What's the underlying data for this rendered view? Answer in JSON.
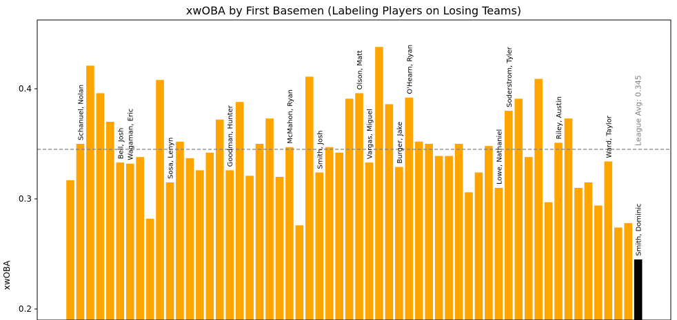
{
  "chart_data": {
    "type": "bar",
    "title": "xwOBA by First Basemen (Labeling Players on Losing Teams)",
    "xlabel": "",
    "ylabel": "xwOBA",
    "ylim": [
      0.19,
      0.4625
    ],
    "yticks": [
      0.2,
      0.3,
      0.4
    ],
    "ytick_labels": [
      "0.2",
      "0.3",
      "0.4"
    ],
    "grid": false,
    "colors": {
      "default": "#FFA500",
      "highlight": "#000000",
      "reference": "#808080"
    },
    "values": [
      0.317,
      0.35,
      0.421,
      0.396,
      0.37,
      0.333,
      0.332,
      0.338,
      0.282,
      0.408,
      0.315,
      0.352,
      0.337,
      0.326,
      0.342,
      0.372,
      0.326,
      0.388,
      0.321,
      0.35,
      0.373,
      0.32,
      0.347,
      0.276,
      0.411,
      0.324,
      0.347,
      0.342,
      0.391,
      0.396,
      0.333,
      0.438,
      0.386,
      0.329,
      0.392,
      0.352,
      0.35,
      0.339,
      0.339,
      0.35,
      0.306,
      0.324,
      0.348,
      0.31,
      0.38,
      0.391,
      0.338,
      0.409,
      0.297,
      0.351,
      0.373,
      0.31,
      0.315,
      0.294,
      0.334,
      0.274,
      0.278,
      0.245
    ],
    "highlight_index": 57,
    "bar_labels": [
      {
        "index": 1,
        "text": "Schanuel, Nolan"
      },
      {
        "index": 5,
        "text": "Bell, Josh"
      },
      {
        "index": 6,
        "text": "Wagaman, Eric"
      },
      {
        "index": 10,
        "text": "Sosa, Lenyn"
      },
      {
        "index": 16,
        "text": "Goodman, Hunter"
      },
      {
        "index": 22,
        "text": "McMahon, Ryan"
      },
      {
        "index": 25,
        "text": "Smith, Josh"
      },
      {
        "index": 29,
        "text": "Olson, Matt"
      },
      {
        "index": 30,
        "text": "Vargas, Miguel"
      },
      {
        "index": 33,
        "text": "Burger, Jake"
      },
      {
        "index": 34,
        "text": "O'Hearn, Ryan"
      },
      {
        "index": 43,
        "text": "Lowe, Nathaniel"
      },
      {
        "index": 44,
        "text": "Soderstrom, Tyler"
      },
      {
        "index": 49,
        "text": "Riley, Austin"
      },
      {
        "index": 54,
        "text": "Ward, Taylor"
      },
      {
        "index": 57,
        "text": "Smith, Dominic"
      }
    ],
    "reference_line": {
      "value": 0.345,
      "label": "League Avg: 0.345",
      "style": "dashed"
    }
  }
}
